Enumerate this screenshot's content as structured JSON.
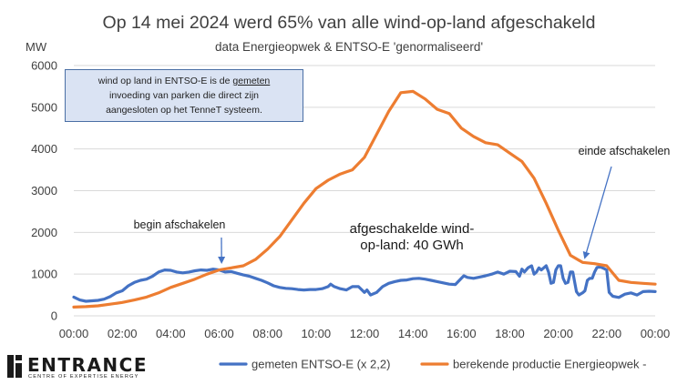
{
  "chart_data": {
    "type": "line",
    "title": "Op 14 mei 2024 werd 65% van alle wind-op-land afgeschakeld",
    "subtitle": "data Energieopwek & ENTSO-E 'genormaliseerd'",
    "ylabel": "MW",
    "ylim": [
      0,
      6000
    ],
    "yticks": [
      "0",
      "1000",
      "2000",
      "3000",
      "4000",
      "5000",
      "6000"
    ],
    "xticks": [
      "00:00",
      "02:00",
      "04:00",
      "06:00",
      "08:00",
      "10:00",
      "12:00",
      "14:00",
      "16:00",
      "18:00",
      "20:00",
      "22:00",
      "00:00"
    ],
    "xlim_hours": [
      0,
      24
    ],
    "grid": true,
    "legend_position": "bottom",
    "series": [
      {
        "name": "gemeten ENTSO-E (x 2,2)",
        "color": "#4472c4",
        "points": [
          [
            0,
            450
          ],
          [
            0.25,
            380
          ],
          [
            0.5,
            350
          ],
          [
            0.75,
            360
          ],
          [
            1,
            370
          ],
          [
            1.25,
            400
          ],
          [
            1.5,
            460
          ],
          [
            1.75,
            550
          ],
          [
            2,
            600
          ],
          [
            2.25,
            720
          ],
          [
            2.5,
            800
          ],
          [
            2.75,
            850
          ],
          [
            3,
            880
          ],
          [
            3.25,
            950
          ],
          [
            3.5,
            1050
          ],
          [
            3.75,
            1100
          ],
          [
            4,
            1090
          ],
          [
            4.25,
            1050
          ],
          [
            4.5,
            1030
          ],
          [
            4.75,
            1050
          ],
          [
            5,
            1080
          ],
          [
            5.25,
            1100
          ],
          [
            5.5,
            1090
          ],
          [
            5.75,
            1120
          ],
          [
            6,
            1100
          ],
          [
            6.25,
            1050
          ],
          [
            6.5,
            1060
          ],
          [
            6.75,
            1020
          ],
          [
            7,
            980
          ],
          [
            7.25,
            950
          ],
          [
            7.5,
            900
          ],
          [
            7.75,
            850
          ],
          [
            8,
            790
          ],
          [
            8.25,
            720
          ],
          [
            8.5,
            680
          ],
          [
            8.75,
            660
          ],
          [
            9,
            650
          ],
          [
            9.25,
            630
          ],
          [
            9.5,
            620
          ],
          [
            9.75,
            630
          ],
          [
            10,
            630
          ],
          [
            10.25,
            650
          ],
          [
            10.5,
            700
          ],
          [
            10.6,
            760
          ],
          [
            10.75,
            700
          ],
          [
            11,
            650
          ],
          [
            11.25,
            620
          ],
          [
            11.5,
            700
          ],
          [
            11.75,
            700
          ],
          [
            12,
            560
          ],
          [
            12.1,
            620
          ],
          [
            12.25,
            500
          ],
          [
            12.5,
            560
          ],
          [
            12.75,
            700
          ],
          [
            13,
            780
          ],
          [
            13.25,
            820
          ],
          [
            13.5,
            850
          ],
          [
            13.75,
            860
          ],
          [
            14,
            890
          ],
          [
            14.25,
            900
          ],
          [
            14.5,
            880
          ],
          [
            14.75,
            850
          ],
          [
            15,
            820
          ],
          [
            15.25,
            790
          ],
          [
            15.5,
            760
          ],
          [
            15.75,
            750
          ],
          [
            16,
            900
          ],
          [
            16.1,
            960
          ],
          [
            16.25,
            920
          ],
          [
            16.5,
            900
          ],
          [
            16.75,
            930
          ],
          [
            17,
            960
          ],
          [
            17.25,
            1000
          ],
          [
            17.5,
            1050
          ],
          [
            17.75,
            1000
          ],
          [
            18,
            1070
          ],
          [
            18.25,
            1060
          ],
          [
            18.4,
            950
          ],
          [
            18.5,
            1120
          ],
          [
            18.6,
            1050
          ],
          [
            18.75,
            1150
          ],
          [
            18.9,
            1200
          ],
          [
            19,
            1000
          ],
          [
            19.1,
            1050
          ],
          [
            19.2,
            1150
          ],
          [
            19.3,
            1100
          ],
          [
            19.4,
            1150
          ],
          [
            19.5,
            1200
          ],
          [
            19.6,
            1050
          ],
          [
            19.7,
            780
          ],
          [
            19.8,
            800
          ],
          [
            19.9,
            1100
          ],
          [
            20,
            1200
          ],
          [
            20.1,
            1200
          ],
          [
            20.2,
            900
          ],
          [
            20.3,
            780
          ],
          [
            20.4,
            800
          ],
          [
            20.5,
            1050
          ],
          [
            20.6,
            1050
          ],
          [
            20.75,
            580
          ],
          [
            20.85,
            500
          ],
          [
            21,
            550
          ],
          [
            21.1,
            600
          ],
          [
            21.2,
            850
          ],
          [
            21.3,
            900
          ],
          [
            21.4,
            900
          ],
          [
            21.5,
            1050
          ],
          [
            21.6,
            1160
          ],
          [
            21.75,
            1170
          ],
          [
            21.9,
            1130
          ],
          [
            22,
            1100
          ],
          [
            22.1,
            560
          ],
          [
            22.25,
            470
          ],
          [
            22.5,
            440
          ],
          [
            22.75,
            520
          ],
          [
            23,
            550
          ],
          [
            23.25,
            500
          ],
          [
            23.5,
            580
          ],
          [
            23.75,
            590
          ],
          [
            24,
            580
          ]
        ]
      },
      {
        "name": "berekende productie Energieopwek -",
        "color": "#ed7d31",
        "points": [
          [
            0,
            210
          ],
          [
            0.5,
            220
          ],
          [
            1,
            240
          ],
          [
            1.5,
            280
          ],
          [
            2,
            320
          ],
          [
            2.5,
            380
          ],
          [
            3,
            450
          ],
          [
            3.5,
            550
          ],
          [
            4,
            680
          ],
          [
            4.5,
            780
          ],
          [
            5,
            880
          ],
          [
            5.5,
            1000
          ],
          [
            6,
            1100
          ],
          [
            6.5,
            1150
          ],
          [
            7,
            1200
          ],
          [
            7.5,
            1350
          ],
          [
            8,
            1600
          ],
          [
            8.5,
            1900
          ],
          [
            9,
            2300
          ],
          [
            9.5,
            2700
          ],
          [
            10,
            3050
          ],
          [
            10.5,
            3250
          ],
          [
            11,
            3400
          ],
          [
            11.5,
            3500
          ],
          [
            12,
            3800
          ],
          [
            12.5,
            4350
          ],
          [
            13,
            4900
          ],
          [
            13.5,
            5350
          ],
          [
            14,
            5380
          ],
          [
            14.5,
            5200
          ],
          [
            15,
            4950
          ],
          [
            15.5,
            4850
          ],
          [
            16,
            4500
          ],
          [
            16.5,
            4300
          ],
          [
            17,
            4150
          ],
          [
            17.5,
            4100
          ],
          [
            18,
            3900
          ],
          [
            18.5,
            3700
          ],
          [
            19,
            3300
          ],
          [
            19.5,
            2700
          ],
          [
            20,
            2050
          ],
          [
            20.5,
            1450
          ],
          [
            21,
            1280
          ],
          [
            21.5,
            1250
          ],
          [
            22,
            1200
          ],
          [
            22.5,
            850
          ],
          [
            23,
            800
          ],
          [
            23.5,
            780
          ],
          [
            24,
            760
          ]
        ]
      }
    ],
    "annotations": [
      {
        "name": "begin",
        "text": "begin afschakelen",
        "x": 6.1,
        "y": 1200
      },
      {
        "name": "einde",
        "text": "einde afschakelen",
        "x": 21.1,
        "y": 1400
      },
      {
        "name": "volume",
        "text_lines": [
          "afgeschakelde wind-",
          "op-land: 40 GWh"
        ]
      }
    ]
  },
  "infobox": {
    "line1_before": "wind op land in ENTSO-E is de ",
    "line1_underlined": "gemeten",
    "line2": "invoeding van parken die direct zijn",
    "line3": "aangesloten op het TenneT systeem."
  },
  "logo": {
    "name": "ENTRANCE",
    "tagline": "CENTRE OF EXPERTISE ENERGY"
  }
}
